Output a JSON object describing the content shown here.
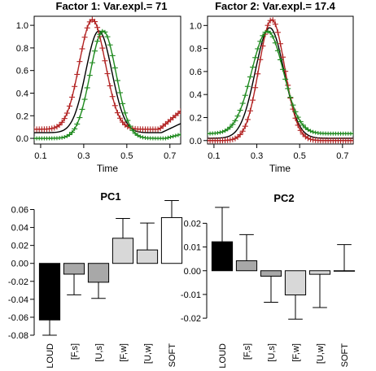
{
  "chart_data": [
    {
      "type": "line",
      "title": "Factor 1:    Var.expl.= 71",
      "xlabel": "Time",
      "ylabel": "",
      "xlim": [
        0.07,
        0.75
      ],
      "ylim": [
        -0.05,
        1.08
      ],
      "xticks": [
        "0.1",
        "0.3",
        "0.5",
        "0.7"
      ],
      "xtick_values": [
        0.1,
        0.3,
        0.5,
        0.7
      ],
      "yticks": [
        "0.0",
        "0.2",
        "0.4",
        "0.6",
        "0.8",
        "1.0"
      ],
      "ytick_values": [
        0,
        0.2,
        0.4,
        0.6,
        0.8,
        1.0
      ],
      "curves": [
        {
          "role": "mean",
          "color": "#000000",
          "baseline": 0.05,
          "peak": 0.95,
          "center": 0.37,
          "width": 0.085,
          "tail_start": 0.66,
          "tail_slope": 0.9,
          "marker": "none"
        },
        {
          "role": "plus",
          "color": "#b22222",
          "baseline": 0.08,
          "peak": 1.05,
          "center": 0.34,
          "width": 0.085,
          "tail_start": 0.65,
          "tail_slope": 1.6,
          "marker": "plus"
        },
        {
          "role": "minus",
          "color": "#1f8a1f",
          "baseline": 0.0,
          "peak": 0.95,
          "center": 0.39,
          "width": 0.085,
          "tail_start": 0.68,
          "tail_slope": 0.5,
          "marker": "minus"
        }
      ],
      "grid": false
    },
    {
      "type": "line",
      "title": "Factor 2:    Var.expl.= 17.4",
      "xlabel": "Time",
      "ylabel": "",
      "xlim": [
        0.07,
        0.75
      ],
      "ylim": [
        -0.03,
        1.08
      ],
      "xticks": [
        "0.1",
        "0.3",
        "0.5",
        "0.7"
      ],
      "xtick_values": [
        0.1,
        0.3,
        0.5,
        0.7
      ],
      "yticks": [
        "0.0",
        "0.2",
        "0.4",
        "0.6",
        "0.8",
        "1.0"
      ],
      "ytick_values": [
        0,
        0.2,
        0.4,
        0.6,
        0.8,
        1.0
      ],
      "curves": [
        {
          "role": "mean",
          "color": "#000000",
          "baseline": 0.02,
          "peak": 0.98,
          "center": 0.36,
          "width": 0.095,
          "tail_start": 0.9,
          "tail_slope": 0,
          "marker": "none"
        },
        {
          "role": "plus",
          "color": "#b22222",
          "baseline": 0.0,
          "peak": 1.05,
          "center": 0.37,
          "width": 0.085,
          "tail_start": 0.9,
          "tail_slope": 0,
          "marker": "plus"
        },
        {
          "role": "minus",
          "color": "#1f8a1f",
          "baseline": 0.06,
          "peak": 0.95,
          "center": 0.35,
          "width": 0.105,
          "tail_start": 0.9,
          "tail_slope": 0,
          "marker": "minus"
        }
      ],
      "grid": false
    },
    {
      "type": "bar",
      "title": "PC1",
      "xlabel": "",
      "ylabel": "",
      "categories": [
        "LOUD",
        "[F,s]",
        "[U,s]",
        "[F,w]",
        "[U,w]",
        "SOFT"
      ],
      "values": [
        -0.063,
        -0.012,
        -0.021,
        0.028,
        0.015,
        0.051
      ],
      "errors": [
        0.017,
        0.023,
        0.018,
        0.022,
        0.03,
        0.019
      ],
      "colors": [
        "#000000",
        "#a8a8a8",
        "#a8a8a8",
        "#d8d8d8",
        "#d8d8d8",
        "#ffffff"
      ],
      "ylim": [
        -0.08,
        0.065
      ],
      "yticks": [
        "-0.08",
        "-0.06",
        "-0.04",
        "-0.02",
        "0.00",
        "0.02",
        "0.04",
        "0.06"
      ],
      "ytick_values": [
        -0.08,
        -0.06,
        -0.04,
        -0.02,
        0,
        0.02,
        0.04,
        0.06
      ]
    },
    {
      "type": "bar",
      "title": "PC2",
      "xlabel": "",
      "ylabel": "",
      "categories": [
        "LOUD",
        "[F,s]",
        "[U,s]",
        "[F,w]",
        "[U,w]",
        "SOFT"
      ],
      "values": [
        0.0122,
        0.0042,
        -0.0023,
        -0.0102,
        -0.0015,
        0.0
      ],
      "errors": [
        0.0145,
        0.011,
        0.011,
        0.0102,
        0.014,
        0.011
      ],
      "colors": [
        "#000000",
        "#a8a8a8",
        "#a8a8a8",
        "#d8d8d8",
        "#d8d8d8",
        "#ffffff"
      ],
      "ylim": [
        -0.021,
        0.027
      ],
      "yticks": [
        "-0.02",
        "-0.01",
        "0.00",
        "0.01",
        "0.02"
      ],
      "ytick_values": [
        -0.02,
        -0.01,
        0,
        0.01,
        0.02
      ]
    }
  ]
}
